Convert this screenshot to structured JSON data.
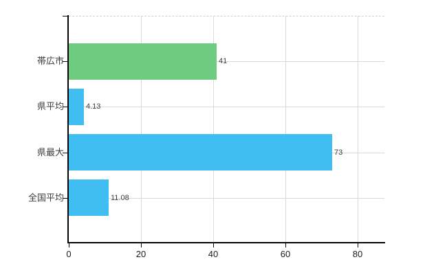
{
  "chart_data": {
    "type": "bar",
    "orientation": "horizontal",
    "title": "",
    "xlabel": "",
    "ylabel": "",
    "categories": [
      "帯広市",
      "県平均",
      "県最大",
      "全国平均"
    ],
    "values": [
      41,
      4.13,
      73,
      11.08
    ],
    "value_labels": [
      "41",
      "4.13",
      "73",
      "11.08"
    ],
    "bar_colors": [
      "#6fcb7f",
      "#41bef1",
      "#41bef1",
      "#41bef1"
    ],
    "x_tick_values": [
      0,
      20,
      40,
      60,
      80
    ],
    "x_tick_labels": [
      "0",
      "20",
      "40",
      "60",
      "80"
    ],
    "xlim": [
      0,
      87.4
    ],
    "grid": true,
    "legend": false
  },
  "colors": {
    "bar_green": "#6fcb7f",
    "bar_blue": "#41bef1",
    "grid_line": "#d9d9d9",
    "top_grid_dashed": "#cfcfcf",
    "axis": "#000000",
    "text": "#3c3c3c",
    "background": "#ffffff"
  }
}
